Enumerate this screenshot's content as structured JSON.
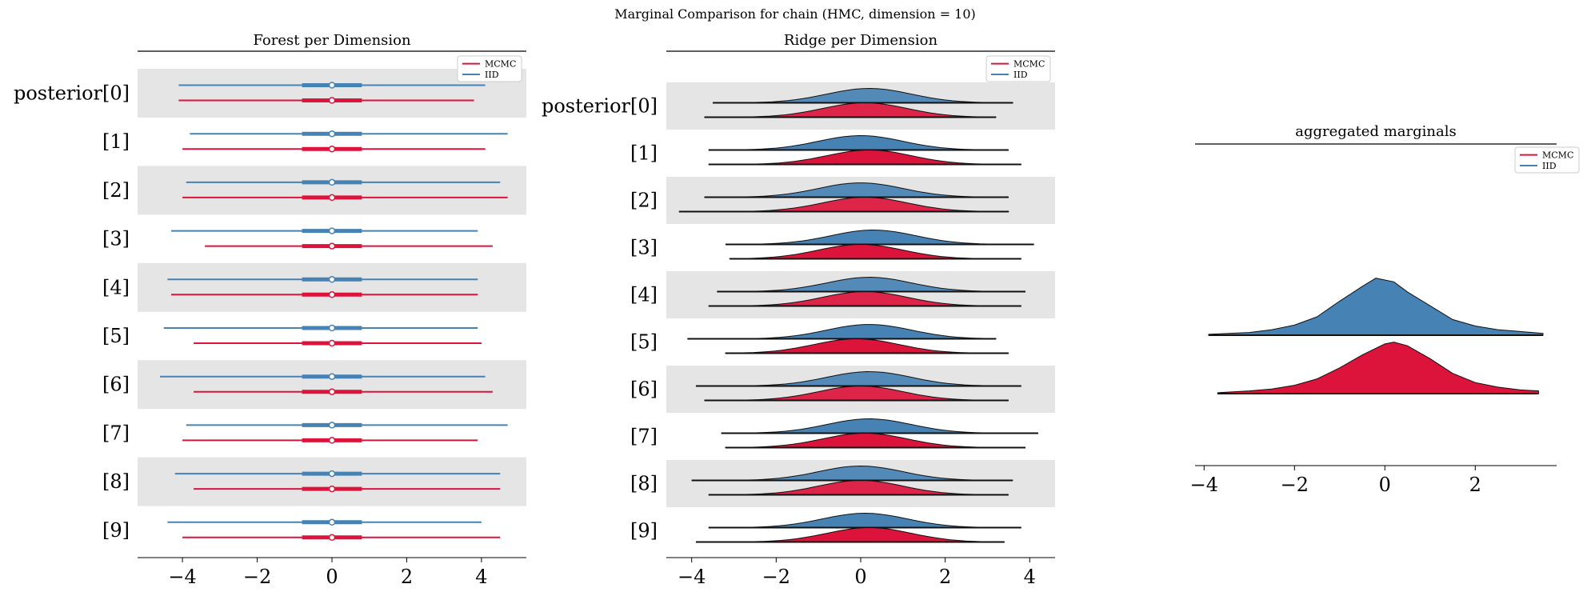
{
  "suptitle": "Marginal Comparison for chain (HMC, dimension = 10)",
  "colors": {
    "mcmc": "#dc143c",
    "iid": "#4682b4",
    "band": "#e5e5e5",
    "outline": "#111111"
  },
  "legend": {
    "labels": [
      "MCMC",
      "IID"
    ],
    "placement": "top-right"
  },
  "chart_data": [
    {
      "type": "forest",
      "title": "Forest per Dimension",
      "row_labels": [
        "posterior[0]",
        "[1]",
        "[2]",
        "[3]",
        "[4]",
        "[5]",
        "[6]",
        "[7]",
        "[8]",
        "[9]"
      ],
      "xlim": [
        -5.2,
        5.2
      ],
      "xticks": [
        -4,
        -2,
        0,
        2,
        4
      ],
      "series": [
        {
          "name": "IID",
          "median": [
            0,
            0,
            0,
            0,
            0,
            0,
            0,
            0,
            0,
            0
          ],
          "iqr": [
            [
              -0.8,
              0.8
            ],
            [
              -0.8,
              0.8
            ],
            [
              -0.8,
              0.8
            ],
            [
              -0.8,
              0.8
            ],
            [
              -0.8,
              0.8
            ],
            [
              -0.8,
              0.8
            ],
            [
              -0.8,
              0.8
            ],
            [
              -0.8,
              0.8
            ],
            [
              -0.8,
              0.8
            ],
            [
              -0.8,
              0.8
            ]
          ],
          "range": [
            [
              -4.1,
              4.1
            ],
            [
              -3.8,
              4.7
            ],
            [
              -3.9,
              4.5
            ],
            [
              -4.3,
              3.9
            ],
            [
              -4.4,
              3.9
            ],
            [
              -4.5,
              3.9
            ],
            [
              -4.6,
              4.1
            ],
            [
              -3.9,
              4.7
            ],
            [
              -4.2,
              4.5
            ],
            [
              -4.4,
              4.0
            ]
          ]
        },
        {
          "name": "MCMC",
          "median": [
            0,
            0,
            0,
            0,
            0,
            0,
            0,
            0,
            0,
            0
          ],
          "iqr": [
            [
              -0.8,
              0.8
            ],
            [
              -0.8,
              0.8
            ],
            [
              -0.8,
              0.8
            ],
            [
              -0.8,
              0.8
            ],
            [
              -0.8,
              0.8
            ],
            [
              -0.8,
              0.8
            ],
            [
              -0.8,
              0.8
            ],
            [
              -0.8,
              0.8
            ],
            [
              -0.8,
              0.8
            ],
            [
              -0.8,
              0.8
            ]
          ],
          "range": [
            [
              -4.1,
              3.8
            ],
            [
              -4.0,
              4.1
            ],
            [
              -4.0,
              4.7
            ],
            [
              -3.4,
              4.3
            ],
            [
              -4.3,
              3.9
            ],
            [
              -3.7,
              4.0
            ],
            [
              -3.7,
              4.3
            ],
            [
              -4.0,
              3.9
            ],
            [
              -3.7,
              4.5
            ],
            [
              -4.0,
              4.5
            ]
          ]
        }
      ]
    },
    {
      "type": "ridge",
      "title": "Ridge per Dimension",
      "row_labels": [
        "posterior[0]",
        "[1]",
        "[2]",
        "[3]",
        "[4]",
        "[5]",
        "[6]",
        "[7]",
        "[8]",
        "[9]"
      ],
      "xlim": [
        -4.6,
        4.6
      ],
      "xticks": [
        -4,
        -2,
        0,
        2,
        4
      ],
      "series": [
        {
          "name": "IID",
          "range": [
            [
              -3.5,
              3.6
            ],
            [
              -3.6,
              3.5
            ],
            [
              -3.7,
              3.5
            ],
            [
              -3.2,
              4.1
            ],
            [
              -3.4,
              3.9
            ],
            [
              -4.1,
              3.2
            ],
            [
              -3.9,
              3.8
            ],
            [
              -3.3,
              4.2
            ],
            [
              -4.0,
              3.6
            ],
            [
              -3.6,
              3.8
            ]
          ],
          "center": [
            0.2,
            0.0,
            0.0,
            0.3,
            0.2,
            0.2,
            0.2,
            0.2,
            0.0,
            0.1
          ]
        },
        {
          "name": "MCMC",
          "range": [
            [
              -3.7,
              3.2
            ],
            [
              -3.6,
              3.8
            ],
            [
              -4.3,
              3.5
            ],
            [
              -3.1,
              3.8
            ],
            [
              -3.6,
              3.8
            ],
            [
              -3.2,
              3.5
            ],
            [
              -3.7,
              3.5
            ],
            [
              -3.2,
              3.9
            ],
            [
              -3.6,
              3.5
            ],
            [
              -3.9,
              3.4
            ]
          ],
          "center": [
            0.1,
            0.2,
            0.1,
            0.0,
            0.1,
            -0.1,
            0.0,
            0.1,
            0.0,
            0.2
          ]
        }
      ]
    },
    {
      "type": "ridge",
      "title": "aggregated marginals",
      "xlim": [
        -4.2,
        3.8
      ],
      "xticks": [
        -4,
        -2,
        0,
        2
      ],
      "series": [
        {
          "name": "IID",
          "x": [
            -3.9,
            -3.0,
            -2.5,
            -2.0,
            -1.5,
            -1.0,
            -0.5,
            -0.2,
            0.2,
            0.5,
            1.0,
            1.5,
            2.0,
            2.5,
            3.0,
            3.5
          ],
          "density": [
            0.01,
            0.03,
            0.06,
            0.11,
            0.2,
            0.37,
            0.53,
            0.62,
            0.58,
            0.47,
            0.32,
            0.17,
            0.1,
            0.06,
            0.04,
            0.02
          ]
        },
        {
          "name": "MCMC",
          "x": [
            -3.7,
            -3.0,
            -2.5,
            -2.0,
            -1.5,
            -1.0,
            -0.5,
            0.0,
            0.2,
            0.5,
            1.0,
            1.5,
            2.0,
            2.5,
            3.0,
            3.4
          ],
          "density": [
            0.01,
            0.03,
            0.05,
            0.09,
            0.16,
            0.28,
            0.42,
            0.54,
            0.56,
            0.52,
            0.38,
            0.22,
            0.12,
            0.07,
            0.04,
            0.03
          ]
        }
      ]
    }
  ]
}
